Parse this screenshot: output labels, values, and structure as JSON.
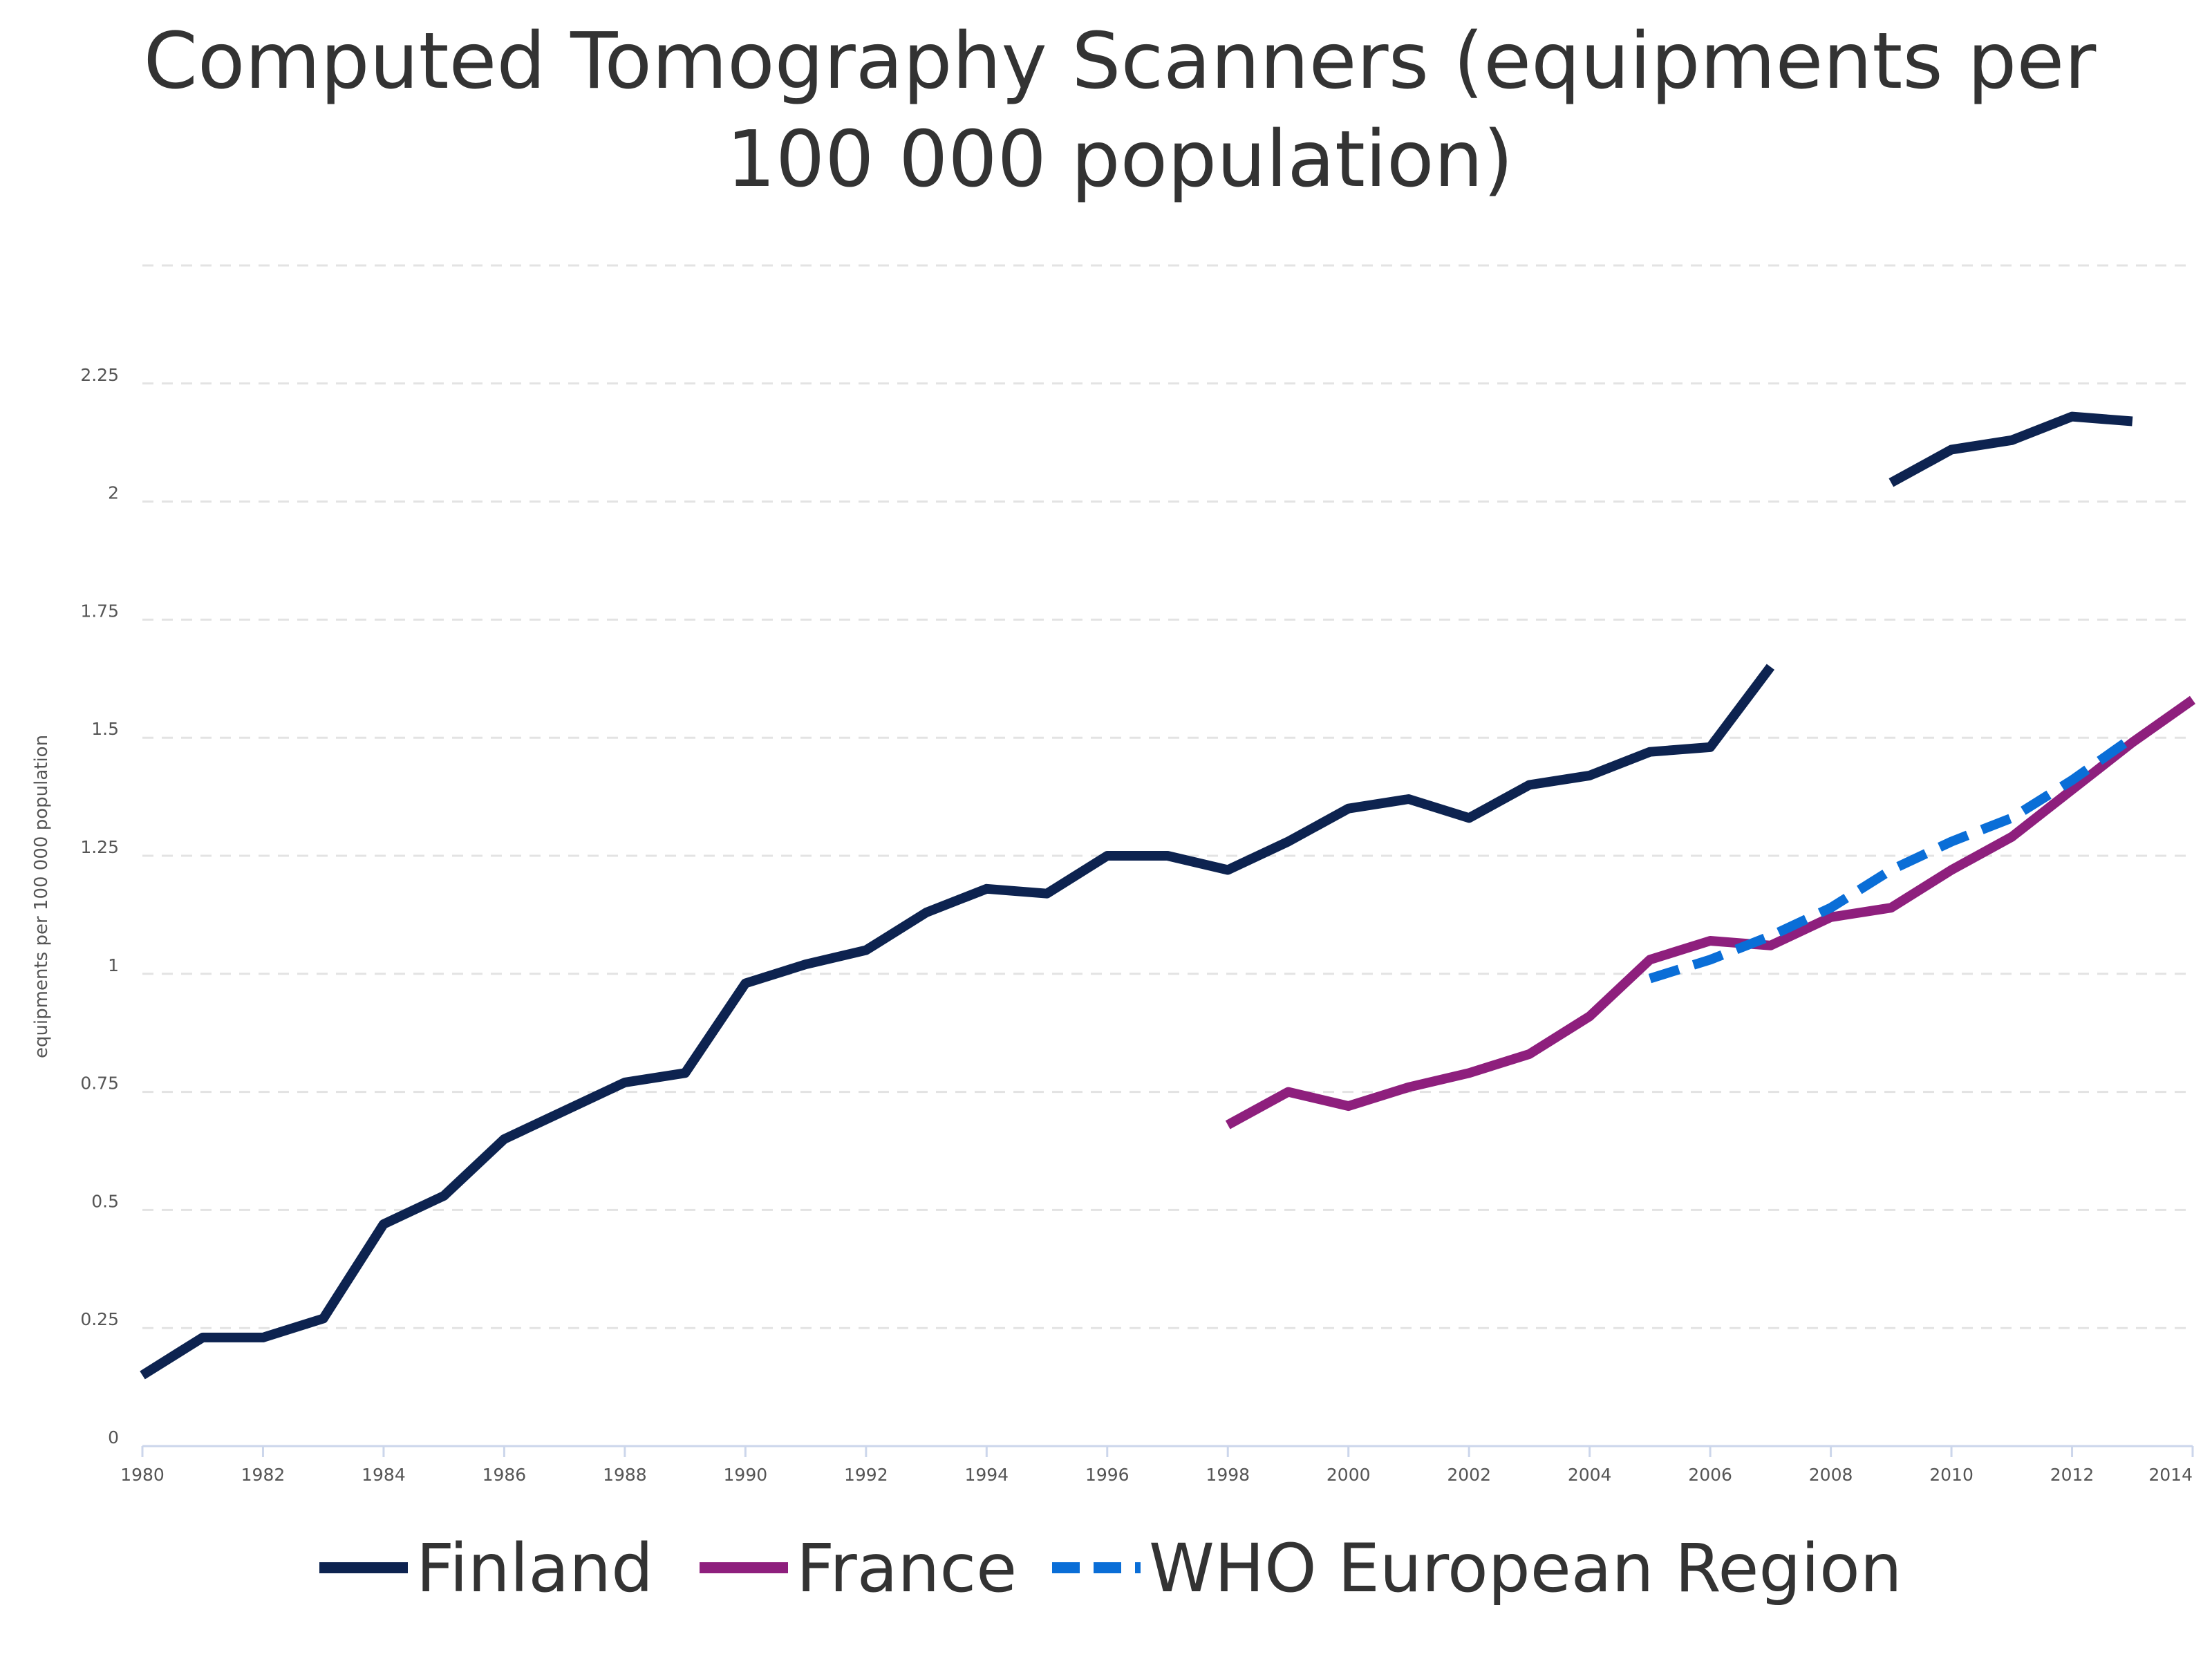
{
  "chart_data": {
    "type": "line",
    "title": "Computed Tomography Scanners (equipments per 100 000 population)",
    "ylabel": "equipments per 100 000 population",
    "xlabel": "",
    "xlim": [
      1980,
      2014
    ],
    "ylim": [
      0,
      2.5
    ],
    "x_ticks": [
      "1980",
      "1982",
      "1984",
      "1986",
      "1988",
      "1990",
      "1992",
      "1994",
      "1996",
      "1998",
      "2000",
      "2002",
      "2004",
      "2006",
      "2008",
      "2010",
      "2012",
      "2014"
    ],
    "y_ticks": [
      "0",
      "0.25",
      "0.5",
      "0.75",
      "1",
      "1.25",
      "1.5",
      "1.75",
      "2",
      "2.25"
    ],
    "grid": true,
    "legend_position": "bottom",
    "series": [
      {
        "name": "Finland",
        "color": "#0d2350",
        "dash": "solid",
        "segments": [
          {
            "x": [
              1980,
              1981,
              1982,
              1983,
              1984,
              1985,
              1986,
              1987,
              1988,
              1989,
              1990,
              1991,
              1992,
              1993,
              1994,
              1995,
              1996,
              1997,
              1998,
              1999,
              2000,
              2001,
              2002,
              2003,
              2004,
              2005,
              2006,
              2007
            ],
            "y": [
              0.15,
              0.23,
              0.23,
              0.27,
              0.47,
              0.53,
              0.65,
              0.71,
              0.77,
              0.79,
              0.98,
              1.02,
              1.05,
              1.13,
              1.18,
              1.17,
              1.25,
              1.25,
              1.22,
              1.28,
              1.35,
              1.37,
              1.33,
              1.4,
              1.42,
              1.47,
              1.48,
              1.65
            ]
          },
          {
            "x": [
              2009,
              2010,
              2011,
              2012,
              2013
            ],
            "y": [
              2.04,
              2.11,
              2.13,
              2.18,
              2.17
            ]
          }
        ]
      },
      {
        "name": "France",
        "color": "#8e1f7d",
        "dash": "solid",
        "segments": [
          {
            "x": [
              1998,
              1999,
              2000,
              2001,
              2002,
              2003,
              2004,
              2005,
              2006,
              2007,
              2008,
              2009,
              2010,
              2011,
              2012,
              2013,
              2014
            ],
            "y": [
              0.68,
              0.75,
              0.72,
              0.76,
              0.79,
              0.83,
              0.91,
              1.03,
              1.07,
              1.06,
              1.12,
              1.14,
              1.22,
              1.29,
              1.39,
              1.49,
              1.58
            ]
          }
        ]
      },
      {
        "name": "WHO European Region",
        "color": "#0a6ed7",
        "dash": "dashed",
        "segments": [
          {
            "x": [
              2005,
              2006,
              2007,
              2008,
              2009,
              2010,
              2011,
              2012,
              2013
            ],
            "y": [
              0.99,
              1.03,
              1.08,
              1.14,
              1.22,
              1.28,
              1.33,
              1.41,
              1.5
            ]
          }
        ]
      }
    ]
  }
}
